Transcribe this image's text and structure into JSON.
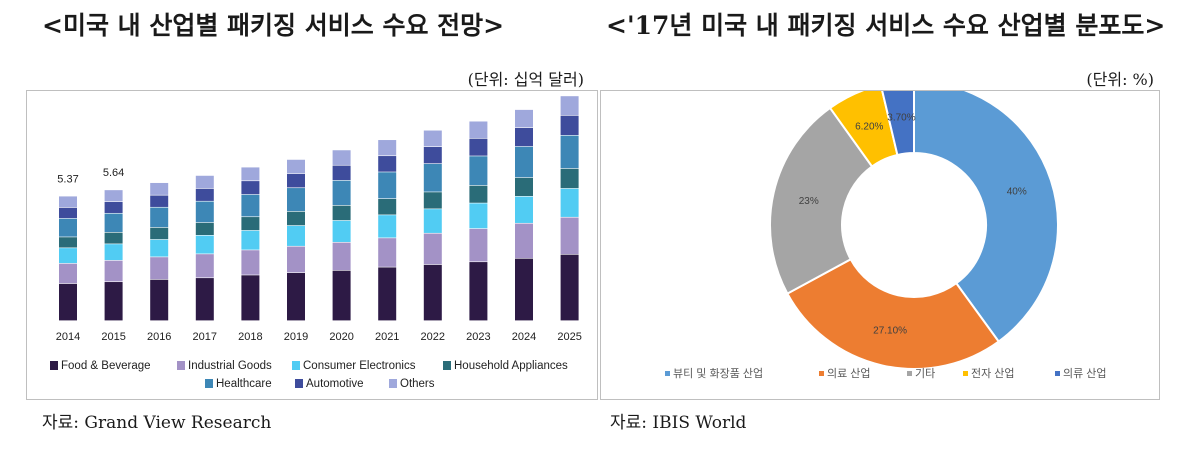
{
  "left": {
    "title": "<미국 내 산업별 패키징 서비스 수요 전망>",
    "unit": "(단위: 십억 달러)",
    "source": "자료: Grand View Research"
  },
  "right": {
    "title": "<'17년 미국 내 패키징 서비스 수요 산업별 분포도>",
    "unit": "(단위: %)",
    "source": "자료: IBIS World"
  },
  "chart_data": [
    {
      "type": "bar",
      "stacked": true,
      "categories": [
        "2014",
        "2015",
        "2016",
        "2017",
        "2018",
        "2019",
        "2020",
        "2021",
        "2022",
        "2023",
        "2024",
        "2025"
      ],
      "total_labels": [
        {
          "category": "2014",
          "label": "5.37"
        },
        {
          "category": "2015",
          "label": "5.64"
        }
      ],
      "series": [
        {
          "name": "Food & Beverage",
          "color": "#2d1a45",
          "values": [
            1.6,
            1.68,
            1.78,
            1.85,
            1.97,
            2.07,
            2.17,
            2.31,
            2.42,
            2.54,
            2.69,
            2.86
          ]
        },
        {
          "name": "Industrial Goods",
          "color": "#a392c6",
          "values": [
            0.87,
            0.92,
            0.97,
            1.03,
            1.08,
            1.14,
            1.21,
            1.26,
            1.35,
            1.43,
            1.51,
            1.6
          ]
        },
        {
          "name": "Consumer Electronics",
          "color": "#51ccf3",
          "values": [
            0.67,
            0.71,
            0.75,
            0.8,
            0.84,
            0.89,
            0.94,
            0.99,
            1.05,
            1.1,
            1.16,
            1.24
          ]
        },
        {
          "name": "Household Appliances",
          "color": "#2a6c78",
          "values": [
            0.47,
            0.5,
            0.52,
            0.55,
            0.59,
            0.61,
            0.65,
            0.7,
            0.73,
            0.76,
            0.81,
            0.86
          ]
        },
        {
          "name": "Healthcare",
          "color": "#3d87b6",
          "values": [
            0.8,
            0.82,
            0.87,
            0.92,
            0.96,
            1.02,
            1.08,
            1.15,
            1.22,
            1.27,
            1.34,
            1.43
          ]
        },
        {
          "name": "Automotive",
          "color": "#3e4c9c",
          "values": [
            0.47,
            0.5,
            0.52,
            0.55,
            0.59,
            0.61,
            0.65,
            0.7,
            0.73,
            0.76,
            0.81,
            0.86
          ]
        },
        {
          "name": "Others",
          "color": "#9fa8dc",
          "values": [
            0.49,
            0.51,
            0.54,
            0.56,
            0.59,
            0.61,
            0.66,
            0.69,
            0.71,
            0.74,
            0.78,
            0.84
          ]
        }
      ],
      "grid": false,
      "legend_position": "bottom"
    },
    {
      "type": "pie",
      "donut": true,
      "slices": [
        {
          "name": "뷰티 및 화장품 산업",
          "value": 40,
          "label": "40%",
          "color": "#5b9bd5"
        },
        {
          "name": "의료 산업",
          "value": 27.1,
          "label": "27.10%",
          "color": "#ed7d31"
        },
        {
          "name": "기타",
          "value": 23,
          "label": "23%",
          "color": "#a5a5a5"
        },
        {
          "name": "전자 산업",
          "value": 6.2,
          "label": "6.20%",
          "color": "#ffc000"
        },
        {
          "name": "의류 산업",
          "value": 3.7,
          "label": "3.70%",
          "color": "#4472c4"
        }
      ],
      "legend_position": "bottom"
    }
  ]
}
